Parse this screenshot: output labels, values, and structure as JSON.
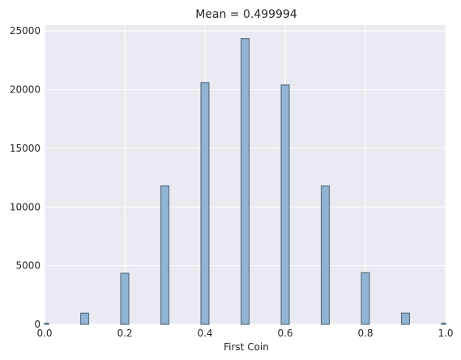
{
  "chart_data": {
    "type": "bar",
    "title": "Mean = 0.499994",
    "xlabel": "First Coin",
    "ylabel": "",
    "xlim": [
      0,
      1.0
    ],
    "ylim": [
      0,
      25500
    ],
    "bin_width": 0.02,
    "x_ticks": [
      {
        "value": 0.0,
        "label": "0.0"
      },
      {
        "value": 0.2,
        "label": "0.2"
      },
      {
        "value": 0.4,
        "label": "0.4"
      },
      {
        "value": 0.6,
        "label": "0.6"
      },
      {
        "value": 0.8,
        "label": "0.8"
      },
      {
        "value": 1.0,
        "label": "1.0"
      }
    ],
    "y_ticks": [
      {
        "value": 0,
        "label": "0"
      },
      {
        "value": 5000,
        "label": "5000"
      },
      {
        "value": 10000,
        "label": "10000"
      },
      {
        "value": 15000,
        "label": "15000"
      },
      {
        "value": 20000,
        "label": "20000"
      },
      {
        "value": 25000,
        "label": "25000"
      }
    ],
    "bars": [
      {
        "x": 0.0,
        "value": 100
      },
      {
        "x": 0.1,
        "value": 950
      },
      {
        "x": 0.2,
        "value": 4350
      },
      {
        "x": 0.3,
        "value": 11800
      },
      {
        "x": 0.4,
        "value": 20600
      },
      {
        "x": 0.5,
        "value": 24350
      },
      {
        "x": 0.6,
        "value": 20400
      },
      {
        "x": 0.7,
        "value": 11800
      },
      {
        "x": 0.8,
        "value": 4400
      },
      {
        "x": 0.9,
        "value": 950
      },
      {
        "x": 1.0,
        "value": 100
      }
    ],
    "grid": true,
    "colors": {
      "background": "#eaeaf2",
      "grid": "#ffffff",
      "bar_fill": "#92b4d4",
      "bar_edge": "#5b6f80",
      "text": "#262626"
    }
  }
}
